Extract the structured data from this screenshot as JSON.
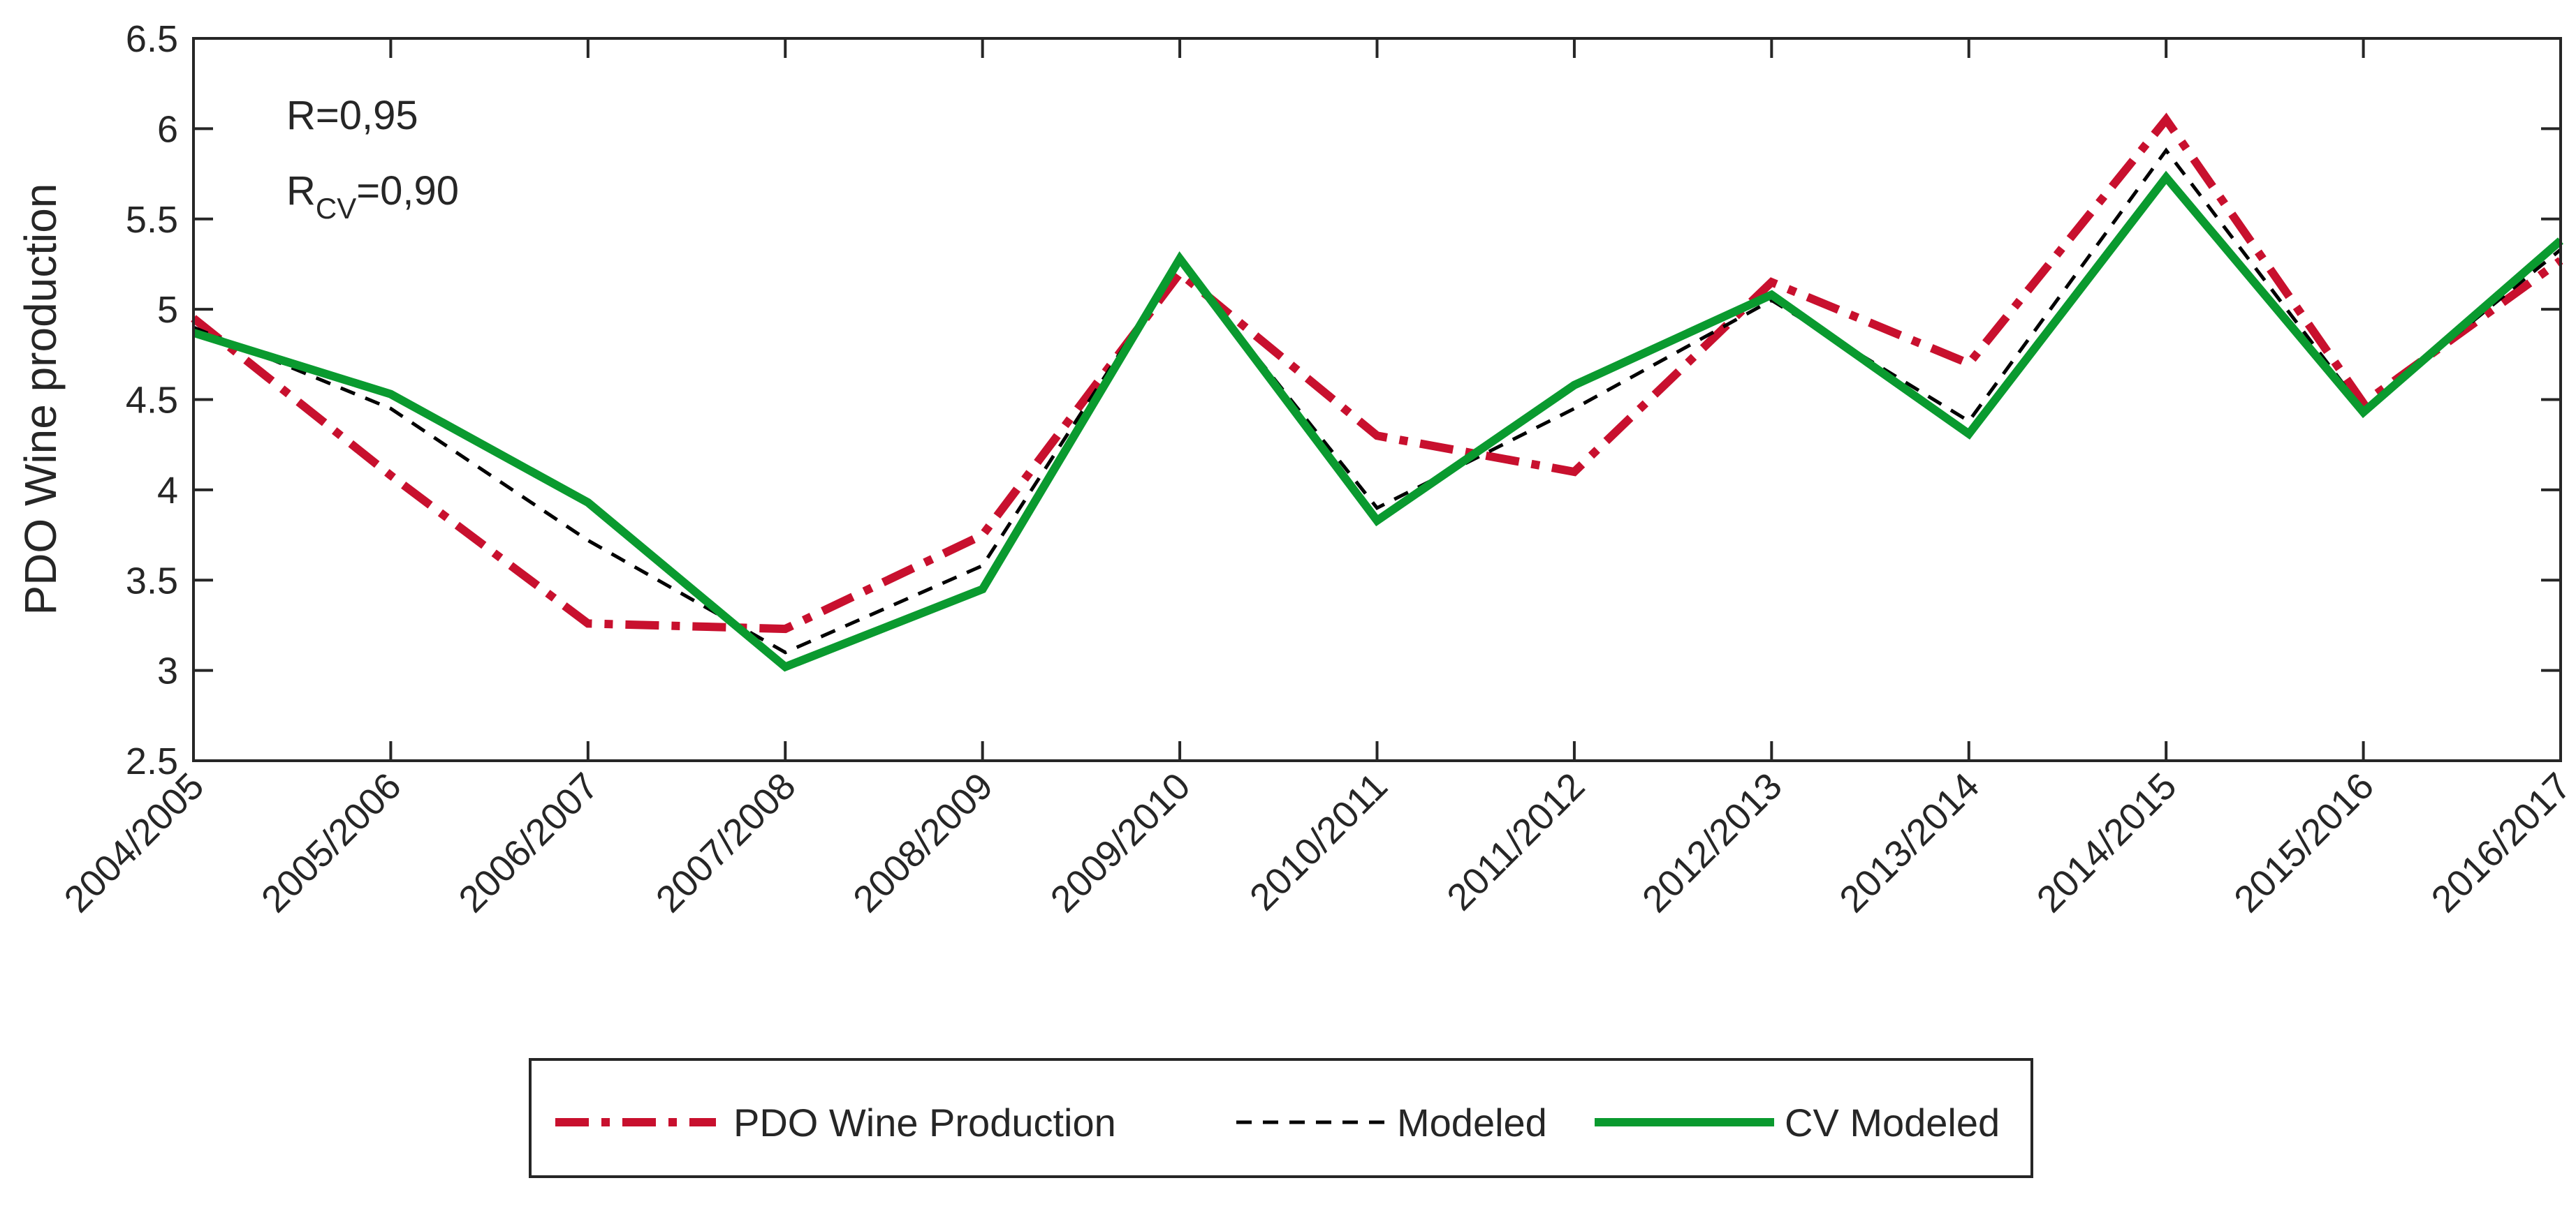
{
  "chart_data": {
    "type": "line",
    "title": "",
    "xlabel": "",
    "ylabel": "PDO Wine production",
    "ylim": [
      2.5,
      6.5
    ],
    "yticks": [
      "2.5",
      "3",
      "3.5",
      "4",
      "4.5",
      "5",
      "5.5",
      "6",
      "6.5"
    ],
    "grid": false,
    "categories": [
      "2004/2005",
      "2005/2006",
      "2006/2007",
      "2007/2008",
      "2008/2009",
      "2009/2010",
      "2010/2011",
      "2011/2012",
      "2012/2013",
      "2013/2014",
      "2014/2015",
      "2015/2016",
      "2016/2017"
    ],
    "series": [
      {
        "name": "PDO Wine Production",
        "color": "#c8102e",
        "style": "dash-dot",
        "values": [
          4.95,
          4.08,
          3.26,
          3.23,
          3.75,
          5.2,
          4.3,
          4.1,
          5.15,
          4.7,
          6.05,
          4.48,
          5.27
        ]
      },
      {
        "name": "Modeled",
        "color": "#000000",
        "style": "dashed",
        "values": [
          4.9,
          4.45,
          3.72,
          3.1,
          3.58,
          5.27,
          3.9,
          4.45,
          5.05,
          4.38,
          5.88,
          4.44,
          5.33
        ]
      },
      {
        "name": "CV Modeled",
        "color": "#0a9a2f",
        "style": "solid",
        "values": [
          4.87,
          4.53,
          3.93,
          3.02,
          3.45,
          5.28,
          3.83,
          4.58,
          5.08,
          4.31,
          5.73,
          4.43,
          5.38
        ]
      }
    ],
    "annotations": {
      "r_text": "R=0,95",
      "rcv_prefix": "R",
      "rcv_sub": "CV",
      "rcv_value": "=0,90"
    },
    "legend": {
      "position": "bottom-center",
      "orientation": "horizontal"
    }
  }
}
